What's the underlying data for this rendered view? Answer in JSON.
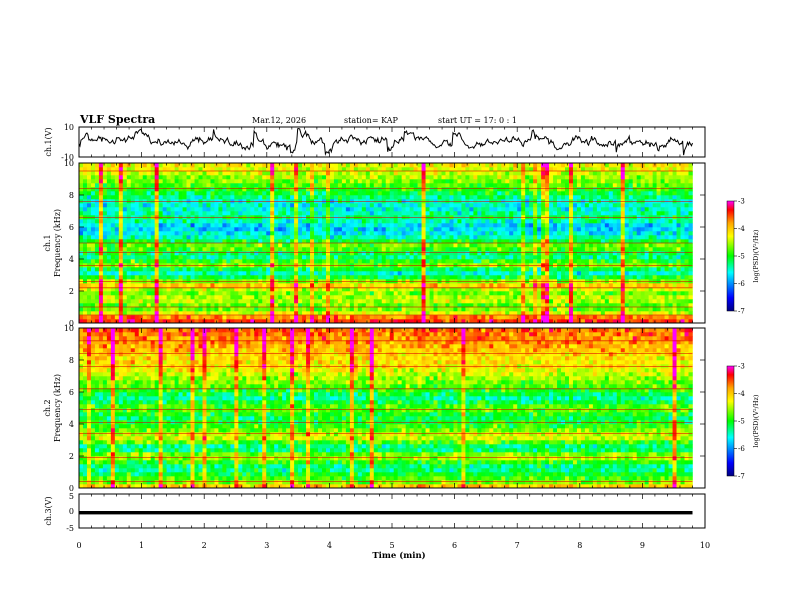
{
  "header": {
    "title": "VLF Spectra",
    "date": "Mar.12, 2026",
    "station": "station= KAP",
    "start_ut": "start  UT =   17: 0  : 1"
  },
  "x_axis": {
    "label": "Time  (min)",
    "range": [
      0,
      10
    ],
    "ticks": [
      "0",
      "1",
      "2",
      "3",
      "4",
      "5",
      "6",
      "7",
      "8",
      "9",
      "10"
    ],
    "data_end_min": 9.8
  },
  "chart_data": [
    {
      "type": "line",
      "name": "ch1-waveform",
      "ylabel": "ch.1(V)",
      "ylim": [
        -10,
        10
      ],
      "ytick_labels": [
        "10",
        "-10"
      ],
      "description_value_range": [
        -9,
        9
      ],
      "xlim": [
        0,
        10
      ]
    },
    {
      "type": "heatmap",
      "name": "ch1-spectrogram",
      "ylabel_line1": "ch.1",
      "ylabel_line2": "Frequency  (kHz)",
      "ylim": [
        0,
        10
      ],
      "ytick_labels": [
        "0",
        "2",
        "4",
        "6",
        "8",
        "10"
      ],
      "xlim": [
        0,
        9.8
      ],
      "colorbar": {
        "label": "log(PSD)(V²/Hz)",
        "range": [
          -7,
          -3
        ],
        "tick_labels": [
          "-3",
          "-4",
          "-5",
          "-6",
          "-7"
        ],
        "colors": [
          "#ff00ff",
          "#ff0000",
          "#ffa500",
          "#ffff00",
          "#00ff00",
          "#00ffff",
          "#0000ff",
          "#000080"
        ]
      },
      "band_profile_log_psd": [
        {
          "f": 0.0,
          "v": -3.4
        },
        {
          "f": 0.3,
          "v": -3.5
        },
        {
          "f": 0.6,
          "v": -4.3
        },
        {
          "f": 1.0,
          "v": -4.9
        },
        {
          "f": 1.5,
          "v": -4.4
        },
        {
          "f": 2.0,
          "v": -4.8
        },
        {
          "f": 2.3,
          "v": -3.9
        },
        {
          "f": 2.8,
          "v": -5.0
        },
        {
          "f": 3.2,
          "v": -5.6
        },
        {
          "f": 3.6,
          "v": -4.6
        },
        {
          "f": 4.2,
          "v": -5.4
        },
        {
          "f": 4.8,
          "v": -4.6
        },
        {
          "f": 5.4,
          "v": -5.5
        },
        {
          "f": 6.0,
          "v": -5.8
        },
        {
          "f": 6.6,
          "v": -5.2
        },
        {
          "f": 7.2,
          "v": -5.6
        },
        {
          "f": 7.8,
          "v": -5.4
        },
        {
          "f": 8.4,
          "v": -4.9
        },
        {
          "f": 9.0,
          "v": -4.6
        },
        {
          "f": 10.0,
          "v": -4.2
        }
      ],
      "horizontal_lines_khz": [
        0.5,
        1.0,
        2.2,
        2.6,
        3.6,
        4.4,
        5.0,
        6.6,
        7.6,
        8.4,
        9.5
      ]
    },
    {
      "type": "heatmap",
      "name": "ch2-spectrogram",
      "ylabel_line1": "ch.2",
      "ylabel_line2": "Frequency  (kHz)",
      "ylim": [
        0,
        10
      ],
      "ytick_labels": [
        "0",
        "2",
        "4",
        "6",
        "8",
        "10"
      ],
      "xlim": [
        0,
        9.8
      ],
      "colorbar": {
        "label": "log(PSD)(V²/Hz)",
        "range": [
          -7,
          -3
        ],
        "tick_labels": [
          "-3",
          "-4",
          "-5",
          "-6",
          "-7"
        ],
        "colors": [
          "#ff00ff",
          "#ff0000",
          "#ffa500",
          "#ffff00",
          "#00ff00",
          "#00ffff",
          "#0000ff",
          "#000080"
        ]
      },
      "band_profile_log_psd": [
        {
          "f": 0.0,
          "v": -3.6
        },
        {
          "f": 0.3,
          "v": -4.6
        },
        {
          "f": 0.8,
          "v": -5.0
        },
        {
          "f": 1.3,
          "v": -5.4
        },
        {
          "f": 2.0,
          "v": -4.4
        },
        {
          "f": 2.5,
          "v": -5.5
        },
        {
          "f": 3.2,
          "v": -4.3
        },
        {
          "f": 3.8,
          "v": -4.9
        },
        {
          "f": 4.4,
          "v": -5.2
        },
        {
          "f": 5.0,
          "v": -4.7
        },
        {
          "f": 5.6,
          "v": -5.4
        },
        {
          "f": 6.2,
          "v": -4.9
        },
        {
          "f": 7.0,
          "v": -4.5
        },
        {
          "f": 7.6,
          "v": -4.2
        },
        {
          "f": 8.4,
          "v": -4.1
        },
        {
          "f": 9.0,
          "v": -3.8
        },
        {
          "f": 10.0,
          "v": -3.6
        }
      ],
      "horizontal_lines_khz": [
        0.4,
        1.9,
        3.4,
        4.1,
        4.9,
        6.2,
        7.6,
        8.4,
        9.2
      ]
    },
    {
      "type": "line",
      "name": "ch3-waveform",
      "ylabel": "ch.3(V)",
      "ylim": [
        -5,
        5
      ],
      "ytick_labels": [
        "5",
        "0",
        "-5"
      ],
      "signal_level_v": [
        -1,
        0
      ],
      "xlim": [
        0,
        9.8
      ]
    }
  ]
}
